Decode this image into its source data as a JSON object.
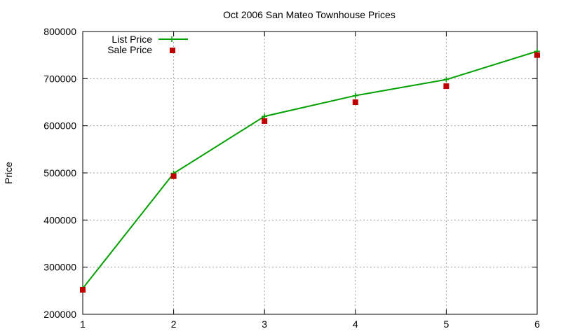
{
  "chart_data": {
    "type": "line",
    "title": "Oct 2006 San Mateo Townhouse Prices",
    "xlabel": "",
    "ylabel": "Price",
    "x": [
      1,
      2,
      3,
      4,
      5,
      6
    ],
    "xlim": [
      1,
      6
    ],
    "ylim": [
      200000,
      800000
    ],
    "xticks": [
      "1",
      "2",
      "3",
      "4",
      "5",
      "6"
    ],
    "yticks": [
      "200000",
      "300000",
      "400000",
      "500000",
      "600000",
      "700000",
      "800000"
    ],
    "grid": true,
    "legend_position": "top-left",
    "series": [
      {
        "name": "List Price",
        "style": "line with plus markers",
        "color": "#00a000",
        "values": [
          255000,
          499000,
          620000,
          664000,
          698000,
          758000
        ]
      },
      {
        "name": "Sale Price",
        "style": "square markers",
        "color": "#c00000",
        "values": [
          252000,
          493000,
          610000,
          650000,
          684000,
          750000
        ]
      }
    ]
  }
}
